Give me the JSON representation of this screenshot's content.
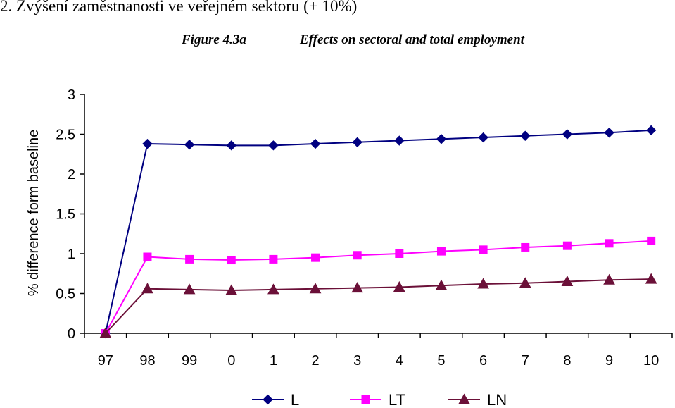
{
  "heading": "2.  Zvýšení zaměstnanosti ve veřejném sektoru (+ 10%)",
  "figure": {
    "label": "Figure 4.3a",
    "title": "Effects on sectoral and total employment"
  },
  "chart_data": {
    "type": "line",
    "title": "Effects on sectoral and total employment",
    "xlabel": "",
    "ylabel": "% difference form baseline",
    "categories": [
      "97",
      "98",
      "99",
      "0",
      "1",
      "2",
      "3",
      "4",
      "5",
      "6",
      "7",
      "8",
      "9",
      "10"
    ],
    "ylim": [
      0,
      3
    ],
    "yticks": [
      0,
      0.5,
      1,
      1.5,
      2,
      2.5,
      3
    ],
    "grid": false,
    "legend": "bottom",
    "series": [
      {
        "name": "L",
        "color": "#000080",
        "marker": "diamond",
        "values": [
          0,
          2.38,
          2.37,
          2.36,
          2.36,
          2.38,
          2.4,
          2.42,
          2.44,
          2.46,
          2.48,
          2.5,
          2.52,
          2.55
        ]
      },
      {
        "name": "LT",
        "color": "#FF00FF",
        "marker": "square",
        "values": [
          0,
          0.96,
          0.93,
          0.92,
          0.93,
          0.95,
          0.98,
          1.0,
          1.03,
          1.05,
          1.08,
          1.1,
          1.13,
          1.16
        ]
      },
      {
        "name": "LN",
        "color": "#6B1038",
        "marker": "triangle",
        "values": [
          0,
          0.56,
          0.55,
          0.54,
          0.55,
          0.56,
          0.57,
          0.58,
          0.6,
          0.62,
          0.63,
          0.65,
          0.67,
          0.68
        ]
      }
    ]
  }
}
